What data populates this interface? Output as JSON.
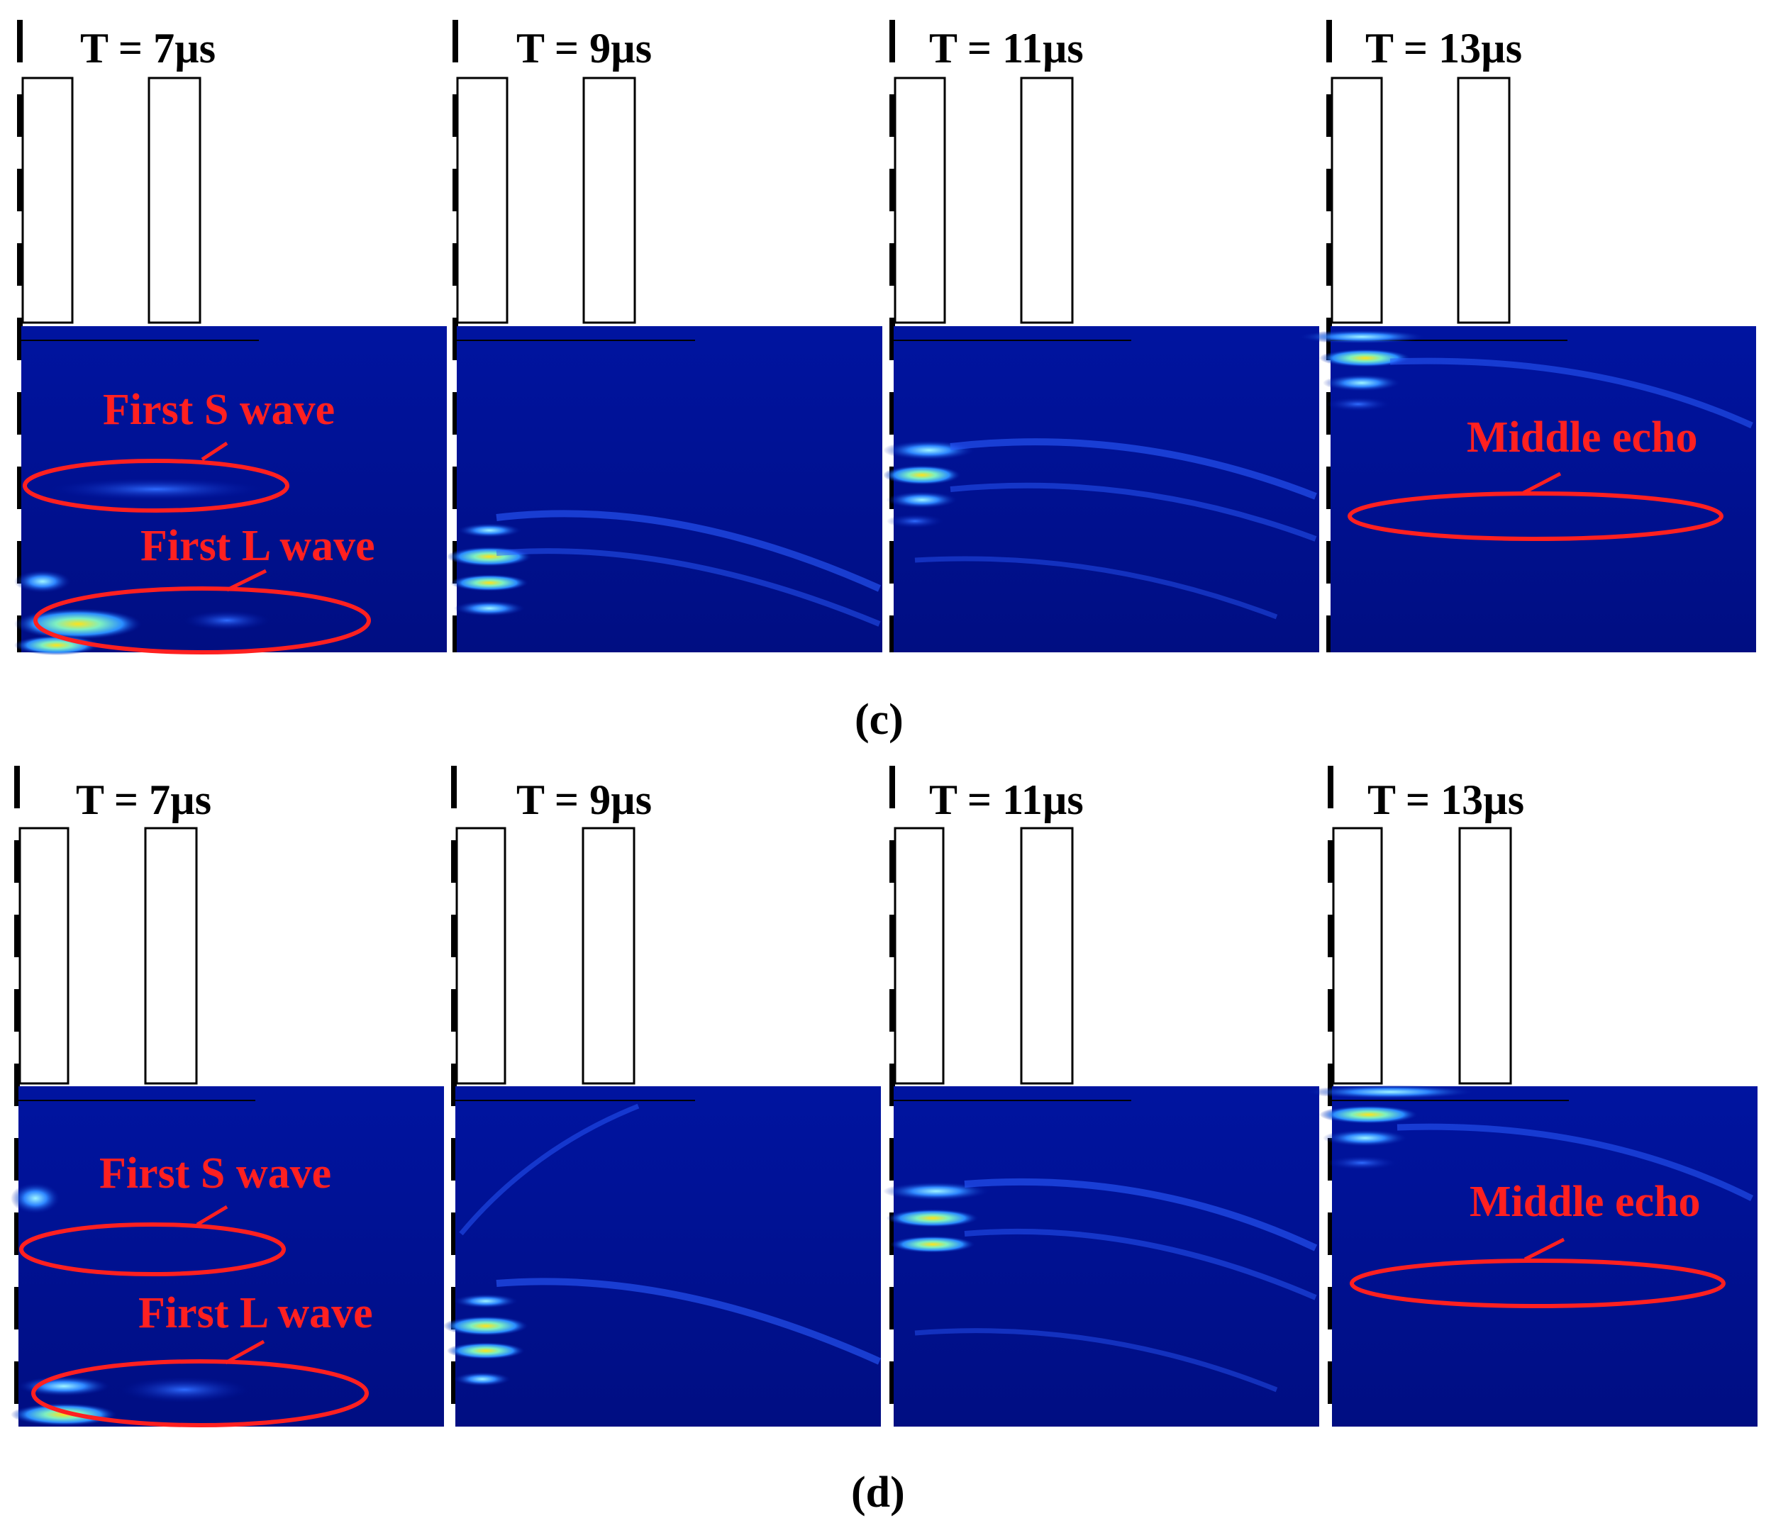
{
  "figure": {
    "rows": [
      {
        "caption": "(c)",
        "panels": [
          {
            "time_label": "T = 7µs",
            "annotations": [
              "First S wave",
              "First L wave"
            ]
          },
          {
            "time_label": "T = 9µs",
            "annotations": []
          },
          {
            "time_label": "T = 11µs",
            "annotations": []
          },
          {
            "time_label": "T = 13µs",
            "annotations": [
              "Middle echo"
            ]
          }
        ]
      },
      {
        "caption": "(d)",
        "panels": [
          {
            "time_label": "T = 7µs",
            "annotations": [
              "First S wave",
              "First L wave"
            ]
          },
          {
            "time_label": "T = 9µs",
            "annotations": []
          },
          {
            "time_label": "T = 11µs",
            "annotations": []
          },
          {
            "time_label": "T = 13µs",
            "annotations": [
              "Middle echo"
            ]
          }
        ]
      }
    ],
    "colors": {
      "field_background": "#00108c",
      "wave_bright": "#4fc8ff",
      "wave_peak": "#ffe21a",
      "annotation": "#ff2020",
      "outline": "#000000"
    }
  }
}
